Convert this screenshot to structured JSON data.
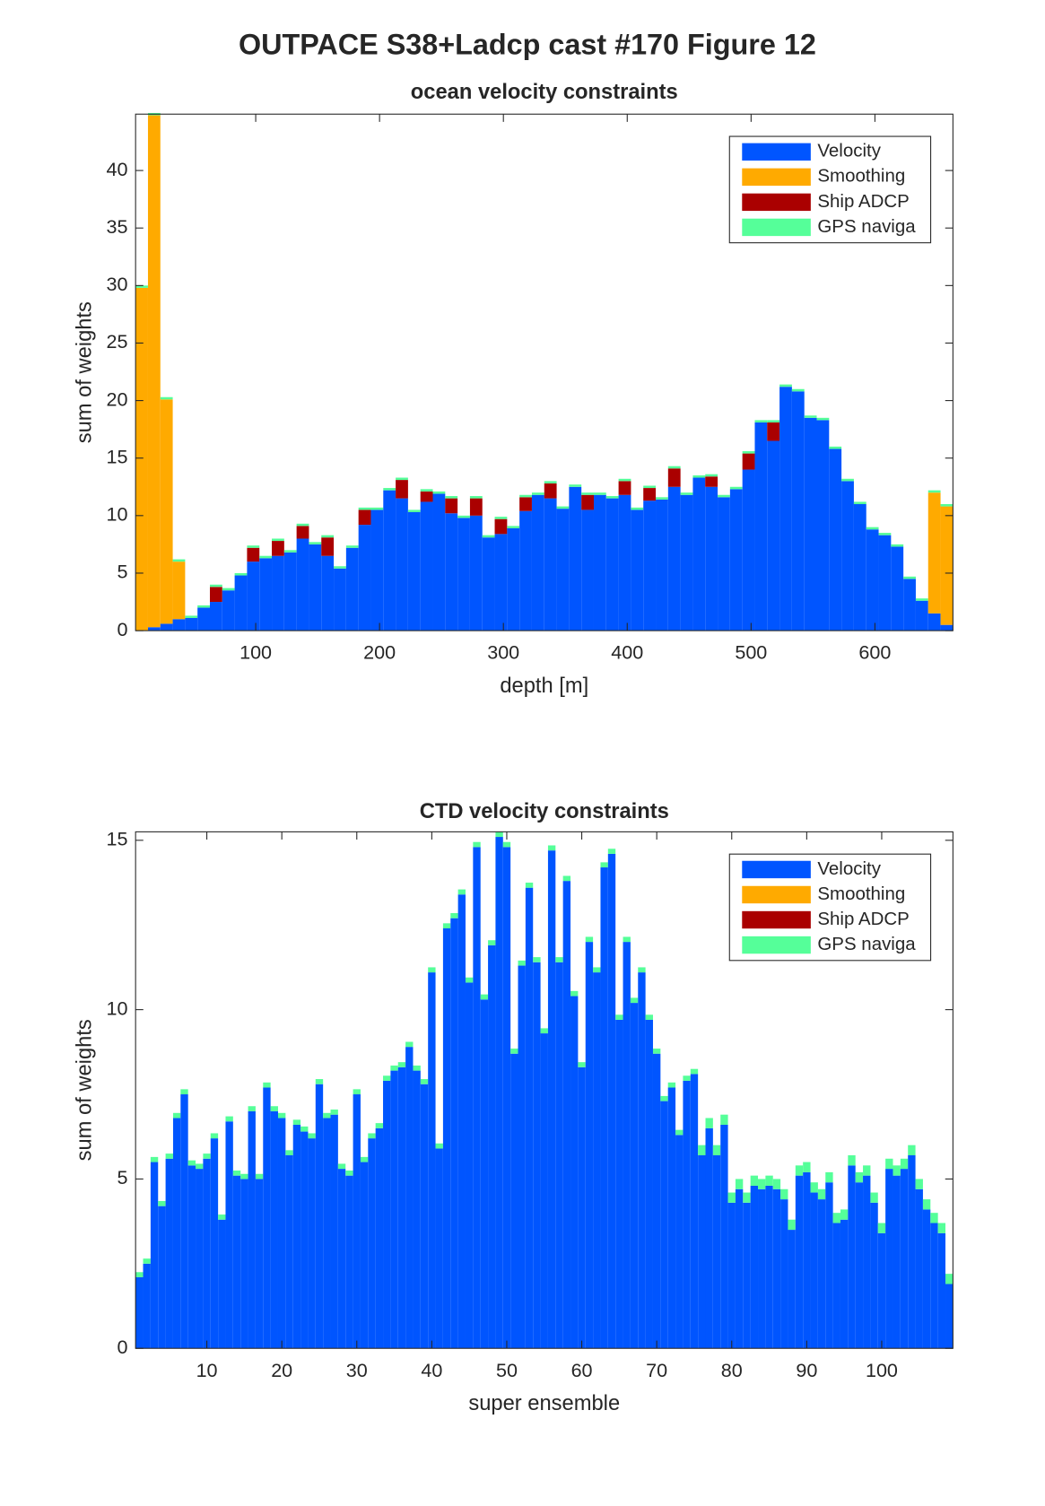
{
  "figure_title": "OUTPACE S38+Ladcp cast #170  Figure 12",
  "chart_data": [
    {
      "type": "bar",
      "stacked": true,
      "title": "ocean velocity constraints",
      "xlabel": "depth [m]",
      "ylabel": "sum of weights",
      "x": [
        8,
        18,
        28,
        38,
        48,
        58,
        68,
        78,
        88,
        98,
        108,
        118,
        128,
        138,
        148,
        158,
        168,
        178,
        188,
        198,
        208,
        218,
        228,
        238,
        248,
        258,
        268,
        278,
        288,
        298,
        308,
        318,
        328,
        338,
        348,
        358,
        368,
        378,
        388,
        398,
        408,
        418,
        428,
        438,
        448,
        458,
        468,
        478,
        488,
        498,
        508,
        518,
        528,
        538,
        548,
        558,
        568,
        578,
        588,
        598,
        608,
        618,
        628,
        638,
        648,
        658
      ],
      "xlim": [
        3,
        663
      ],
      "ylim": [
        0,
        44.9
      ],
      "xticks": [
        100,
        200,
        300,
        400,
        500,
        600
      ],
      "yticks": [
        0,
        5,
        10,
        15,
        20,
        25,
        30,
        35,
        40
      ],
      "legend": "upper right",
      "series": [
        {
          "name": "Velocity",
          "color": "#0055ff",
          "values": [
            0,
            0.3,
            0.6,
            1,
            1.1,
            2,
            2.5,
            3.5,
            4.8,
            6,
            6.3,
            6.5,
            6.8,
            8,
            7.5,
            6.5,
            5.4,
            7.2,
            9.2,
            10.5,
            12.2,
            11.5,
            10.3,
            11.2,
            11.9,
            10.2,
            9.8,
            10,
            8.1,
            8.4,
            8.9,
            10.4,
            11.8,
            11.5,
            10.6,
            12.5,
            10.5,
            11.8,
            11.5,
            11.8,
            10.5,
            11.3,
            11.4,
            12.5,
            11.8,
            13.3,
            12.5,
            11.6,
            12.3,
            14,
            18.1,
            16.5,
            21.2,
            20.8,
            18.5,
            18.3,
            15.8,
            13,
            11,
            8.8,
            8.3,
            7.3,
            4.5,
            2.6,
            1.5,
            0.5
          ]
        },
        {
          "name": "Smoothing",
          "color": "#ffaa00",
          "values": [
            29.8,
            44.5,
            19.5,
            5,
            0,
            0,
            0,
            0,
            0,
            0,
            0,
            0,
            0,
            0,
            0,
            0,
            0,
            0,
            0,
            0,
            0,
            0,
            0,
            0,
            0,
            0,
            0,
            0,
            0,
            0,
            0,
            0,
            0,
            0,
            0,
            0,
            0,
            0,
            0,
            0,
            0,
            0,
            0,
            0,
            0,
            0,
            0,
            0,
            0,
            0,
            0,
            0,
            0,
            0,
            0,
            0,
            0,
            0,
            0,
            0,
            0,
            0,
            0,
            0,
            10.5,
            10.3
          ]
        },
        {
          "name": "Ship ADCP",
          "color": "#aa0000",
          "values": [
            0,
            0,
            0,
            0,
            0,
            0,
            1.3,
            0,
            0,
            1.2,
            0,
            1.3,
            0,
            1.1,
            0,
            1.6,
            0,
            0,
            1.3,
            0,
            0,
            1.6,
            0,
            0.9,
            0,
            1.3,
            0,
            1.5,
            0,
            1.3,
            0,
            1.2,
            0,
            1.3,
            0,
            0,
            1.3,
            0,
            0,
            1.2,
            0,
            1.1,
            0,
            1.6,
            0,
            0,
            0.9,
            0,
            0,
            1.4,
            0,
            1.6,
            0,
            0,
            0,
            0,
            0,
            0,
            0,
            0,
            0,
            0,
            0,
            0,
            0,
            0
          ]
        },
        {
          "name": "GPS naviga",
          "color": "#55ff99",
          "values": [
            0.2,
            0.2,
            0.2,
            0.2,
            0.2,
            0.2,
            0.2,
            0.2,
            0.2,
            0.2,
            0.2,
            0.2,
            0.2,
            0.2,
            0.2,
            0.2,
            0.2,
            0.2,
            0.2,
            0.2,
            0.2,
            0.2,
            0.2,
            0.2,
            0.2,
            0.2,
            0.2,
            0.2,
            0.2,
            0.2,
            0.2,
            0.2,
            0.2,
            0.2,
            0.2,
            0.2,
            0.2,
            0.2,
            0.2,
            0.2,
            0.2,
            0.2,
            0.2,
            0.2,
            0.2,
            0.2,
            0.2,
            0.2,
            0.2,
            0.2,
            0.2,
            0.2,
            0.2,
            0.2,
            0.2,
            0.2,
            0.2,
            0.2,
            0.2,
            0.2,
            0.2,
            0.2,
            0.2,
            0.2,
            0.2,
            0.2
          ]
        }
      ]
    },
    {
      "type": "bar",
      "stacked": true,
      "title": "CTD velocity constraints",
      "xlabel": "super ensemble",
      "ylabel": "sum of weights",
      "x": [
        1,
        2,
        3,
        4,
        5,
        6,
        7,
        8,
        9,
        10,
        11,
        12,
        13,
        14,
        15,
        16,
        17,
        18,
        19,
        20,
        21,
        22,
        23,
        24,
        25,
        26,
        27,
        28,
        29,
        30,
        31,
        32,
        33,
        34,
        35,
        36,
        37,
        38,
        39,
        40,
        41,
        42,
        43,
        44,
        45,
        46,
        47,
        48,
        49,
        50,
        51,
        52,
        53,
        54,
        55,
        56,
        57,
        58,
        59,
        60,
        61,
        62,
        63,
        64,
        65,
        66,
        67,
        68,
        69,
        70,
        71,
        72,
        73,
        74,
        75,
        76,
        77,
        78,
        79,
        80,
        81,
        82,
        83,
        84,
        85,
        86,
        87,
        88,
        89,
        90,
        91,
        92,
        93,
        94,
        95,
        96,
        97,
        98,
        99,
        100,
        101,
        102,
        103,
        104,
        105,
        106,
        107,
        108,
        109
      ],
      "xlim": [
        0.5,
        109.5
      ],
      "ylim": [
        0,
        15.25
      ],
      "xticks": [
        10,
        20,
        30,
        40,
        50,
        60,
        70,
        80,
        90,
        100
      ],
      "yticks": [
        0,
        5,
        10,
        15
      ],
      "legend": "upper right",
      "series": [
        {
          "name": "Velocity",
          "color": "#0055ff",
          "values": [
            2.1,
            2.5,
            5.5,
            4.2,
            5.6,
            6.8,
            7.5,
            5.4,
            5.3,
            5.6,
            6.2,
            3.8,
            6.7,
            5.1,
            5.0,
            7.0,
            5.0,
            7.7,
            7.0,
            6.8,
            5.7,
            6.6,
            6.4,
            6.2,
            7.8,
            6.8,
            6.9,
            5.3,
            5.1,
            7.5,
            5.5,
            6.2,
            6.5,
            7.9,
            8.2,
            8.3,
            8.9,
            8.2,
            7.8,
            11.1,
            5.9,
            12.4,
            12.7,
            13.4,
            10.8,
            14.8,
            10.3,
            11.9,
            15.1,
            14.8,
            8.7,
            11.3,
            13.6,
            11.4,
            9.3,
            14.7,
            11.4,
            13.8,
            10.4,
            8.3,
            12.0,
            11.1,
            14.2,
            14.6,
            9.7,
            12.0,
            10.2,
            11.1,
            9.7,
            8.7,
            7.3,
            7.7,
            6.3,
            7.9,
            8.1,
            5.7,
            6.5,
            5.7,
            6.6,
            4.3,
            4.7,
            4.3,
            4.8,
            4.7,
            4.8,
            4.7,
            4.4,
            3.5,
            5.1,
            5.2,
            4.6,
            4.4,
            4.9,
            3.7,
            3.8,
            5.4,
            4.9,
            5.1,
            4.3,
            3.4,
            5.3,
            5.1,
            5.3,
            5.7,
            4.7,
            4.1,
            3.7,
            3.4,
            1.9
          ]
        },
        {
          "name": "Smoothing",
          "color": "#ffaa00",
          "values": [
            0,
            0,
            0,
            0,
            0,
            0,
            0,
            0,
            0,
            0,
            0,
            0,
            0,
            0,
            0,
            0,
            0,
            0,
            0,
            0,
            0,
            0,
            0,
            0,
            0,
            0,
            0,
            0,
            0,
            0,
            0,
            0,
            0,
            0,
            0,
            0,
            0,
            0,
            0,
            0,
            0,
            0,
            0,
            0,
            0,
            0,
            0,
            0,
            0,
            0,
            0,
            0,
            0,
            0,
            0,
            0,
            0,
            0,
            0,
            0,
            0,
            0,
            0,
            0,
            0,
            0,
            0,
            0,
            0,
            0,
            0,
            0,
            0,
            0,
            0,
            0,
            0,
            0,
            0,
            0,
            0,
            0,
            0,
            0,
            0,
            0,
            0,
            0,
            0,
            0,
            0,
            0,
            0,
            0,
            0,
            0,
            0,
            0,
            0,
            0,
            0,
            0,
            0,
            0,
            0,
            0,
            0,
            0,
            0
          ]
        },
        {
          "name": "Ship ADCP",
          "color": "#aa0000",
          "values": [
            0,
            0,
            0,
            0,
            0,
            0,
            0,
            0,
            0,
            0,
            0,
            0,
            0,
            0,
            0,
            0,
            0,
            0,
            0,
            0,
            0,
            0,
            0,
            0,
            0,
            0,
            0,
            0,
            0,
            0,
            0,
            0,
            0,
            0,
            0,
            0,
            0,
            0,
            0,
            0,
            0,
            0,
            0,
            0,
            0,
            0,
            0,
            0,
            0,
            0,
            0,
            0,
            0,
            0,
            0,
            0,
            0,
            0,
            0,
            0,
            0,
            0,
            0,
            0,
            0,
            0,
            0,
            0,
            0,
            0,
            0,
            0,
            0,
            0,
            0,
            0,
            0,
            0,
            0,
            0,
            0,
            0,
            0,
            0,
            0,
            0,
            0,
            0,
            0,
            0,
            0,
            0,
            0,
            0,
            0,
            0,
            0,
            0,
            0,
            0,
            0,
            0,
            0,
            0,
            0,
            0,
            0,
            0,
            0
          ]
        },
        {
          "name": "GPS naviga",
          "color": "#55ff99",
          "values": [
            0.15,
            0.15,
            0.15,
            0.15,
            0.15,
            0.15,
            0.15,
            0.15,
            0.15,
            0.15,
            0.15,
            0.15,
            0.15,
            0.15,
            0.15,
            0.15,
            0.15,
            0.15,
            0.15,
            0.15,
            0.15,
            0.15,
            0.15,
            0.15,
            0.15,
            0.15,
            0.15,
            0.15,
            0.15,
            0.15,
            0.15,
            0.15,
            0.15,
            0.15,
            0.15,
            0.15,
            0.15,
            0.15,
            0.15,
            0.15,
            0.15,
            0.15,
            0.15,
            0.15,
            0.15,
            0.15,
            0.15,
            0.15,
            0.15,
            0.15,
            0.15,
            0.15,
            0.15,
            0.15,
            0.15,
            0.15,
            0.15,
            0.15,
            0.15,
            0.15,
            0.15,
            0.15,
            0.15,
            0.15,
            0.15,
            0.15,
            0.15,
            0.15,
            0.15,
            0.15,
            0.15,
            0.15,
            0.15,
            0.15,
            0.15,
            0.3,
            0.3,
            0.3,
            0.3,
            0.3,
            0.3,
            0.3,
            0.3,
            0.3,
            0.3,
            0.3,
            0.3,
            0.3,
            0.3,
            0.3,
            0.3,
            0.3,
            0.3,
            0.3,
            0.3,
            0.3,
            0.3,
            0.3,
            0.3,
            0.3,
            0.3,
            0.3,
            0.3,
            0.3,
            0.3,
            0.3,
            0.3,
            0.3,
            0.3
          ]
        }
      ]
    }
  ]
}
